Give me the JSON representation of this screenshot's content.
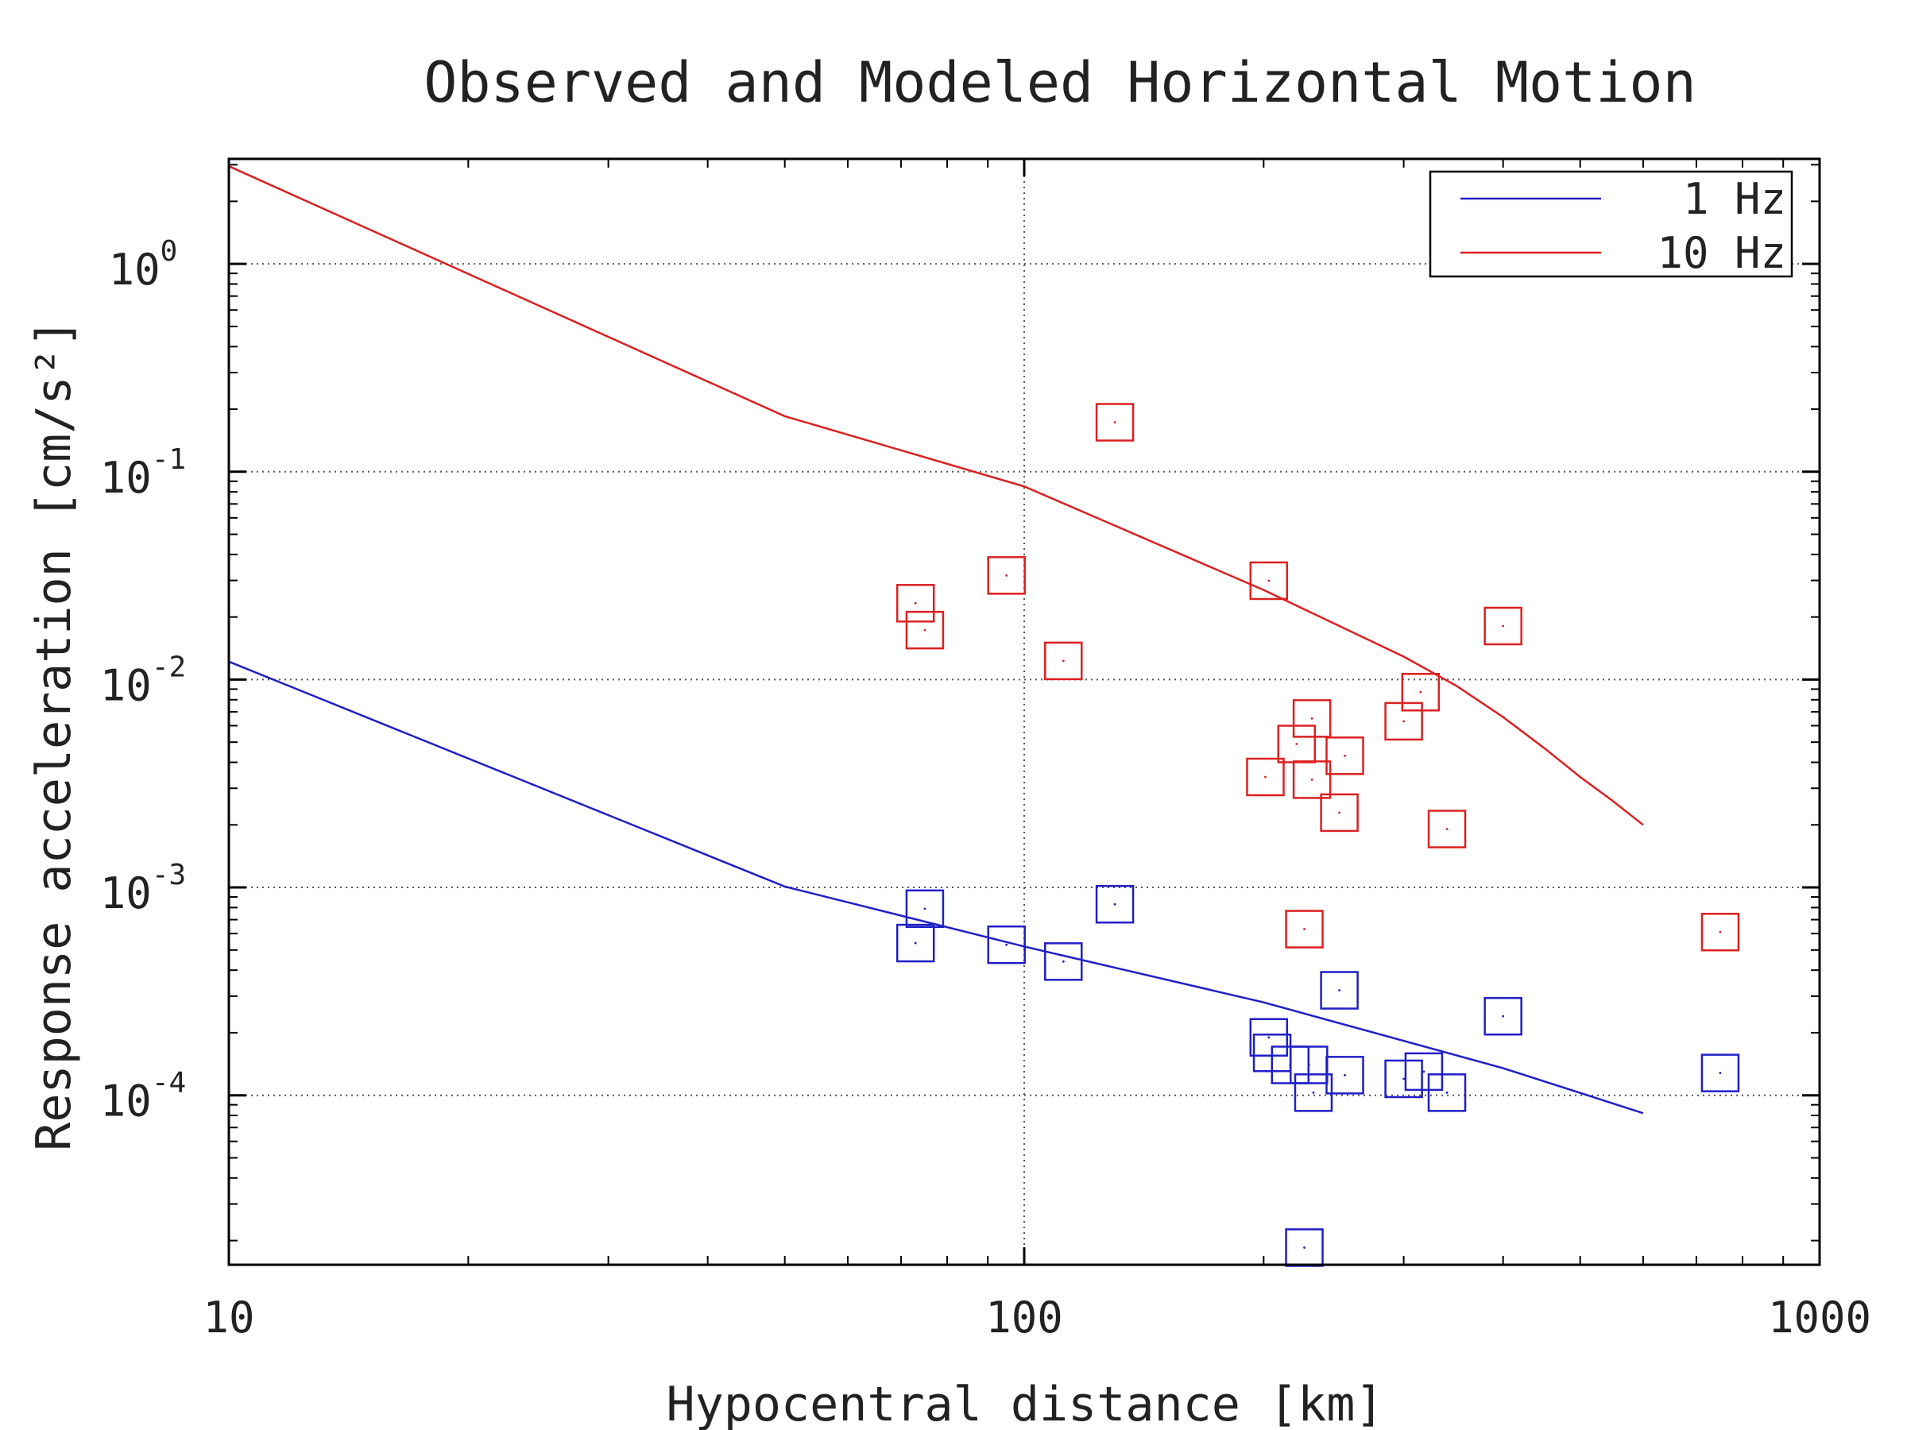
{
  "chart_data": {
    "type": "scatter",
    "title": "Observed and Modeled Horizontal Motion",
    "xlabel": "Hypocentral distance [km]",
    "ylabel": "Response acceleration [cm/s²]",
    "xscale": "log",
    "yscale": "log",
    "xlim": [
      10,
      1000
    ],
    "ylim": [
      1.53e-05,
      3.2
    ],
    "grid": true,
    "legend_position": "top-right",
    "x_ticks": [
      "10",
      "100",
      "1000"
    ],
    "y_ticks": [
      {
        "value": 1,
        "base": "10",
        "exp": "0"
      },
      {
        "value": 0.1,
        "base": "10",
        "exp": "-1"
      },
      {
        "value": 0.01,
        "base": "10",
        "exp": "-2"
      },
      {
        "value": 0.001,
        "base": "10",
        "exp": "-3"
      },
      {
        "value": 0.0001,
        "base": "10",
        "exp": "-4"
      }
    ],
    "series": [
      {
        "name": "1 Hz",
        "color": "#1f1fc8",
        "line": {
          "x": [
            10,
            50,
            100,
            200,
            400,
            600
          ],
          "y": [
            0.0122,
            0.00101,
            0.00052,
            0.00028,
            0.000135,
            8.2e-05
          ]
        },
        "points": {
          "x": [
            73,
            75,
            95,
            112,
            130,
            203,
            205,
            216,
            228,
            231,
            249,
            253,
            300,
            318,
            340,
            400,
            750,
            225
          ],
          "y": [
            0.00054,
            0.00079,
            0.00053,
            0.00044,
            0.00083,
            0.00019,
            0.00016,
            0.00014,
            0.00014,
            0.000103,
            0.00032,
            0.000125,
            0.00012,
            0.00013,
            0.000103,
            0.00024,
            0.000128,
            1.85e-05
          ]
        }
      },
      {
        "name": "10 Hz",
        "color": "#dc2020",
        "line": {
          "x": [
            10,
            50,
            100,
            200,
            300,
            350,
            400,
            450,
            500,
            550,
            600
          ],
          "y": [
            2.95,
            0.185,
            0.085,
            0.027,
            0.0129,
            0.0093,
            0.0066,
            0.0047,
            0.0034,
            0.0026,
            0.002
          ]
        },
        "points": {
          "x": [
            73,
            75,
            95,
            112,
            130,
            203,
            201,
            220,
            230,
            230,
            249,
            253,
            300,
            315,
            340,
            400,
            750,
            225
          ],
          "y": [
            0.0233,
            0.0173,
            0.0317,
            0.0123,
            0.173,
            0.0299,
            0.0034,
            0.0049,
            0.0065,
            0.0033,
            0.00229,
            0.0043,
            0.0063,
            0.0087,
            0.00191,
            0.0181,
            0.00061,
            0.00063
          ]
        }
      }
    ]
  }
}
